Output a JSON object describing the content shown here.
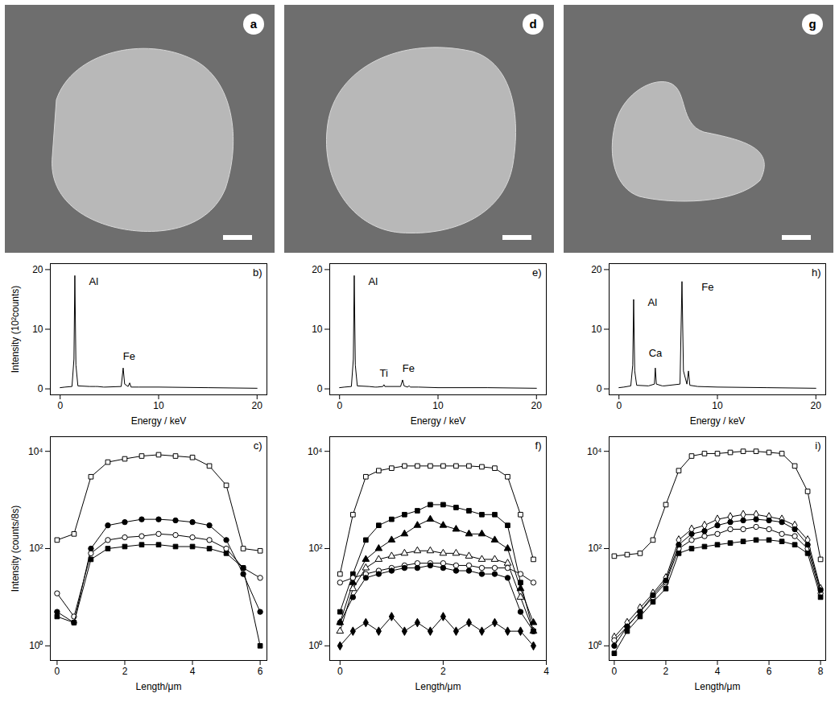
{
  "images": [
    {
      "label": "a"
    },
    {
      "label": "d"
    },
    {
      "label": "g"
    }
  ],
  "chart_data": [
    {
      "type": "line",
      "title": "b)",
      "ylabel": "Intensity (10²counts)",
      "xlabel": "Energy / keV",
      "xlim": [
        -1,
        21
      ],
      "xticks": [
        0,
        10,
        20
      ],
      "ylim": [
        -1,
        21
      ],
      "yticks": [
        0,
        10,
        20
      ],
      "x": [
        0,
        0.5,
        1.2,
        1.4,
        1.49,
        1.6,
        1.8,
        3,
        3.6,
        3.69,
        3.8,
        4.4,
        4.51,
        4.6,
        6.2,
        6.4,
        6.55,
        6.9,
        7.06,
        7.2,
        8,
        10,
        15,
        20
      ],
      "series": [
        {
          "color": "#000000",
          "marker": "none",
          "line_style": "solid",
          "values": [
            0.2,
            0.3,
            0.4,
            5,
            19,
            4,
            0.5,
            0.4,
            0.4,
            0.4,
            0.4,
            0.3,
            0.3,
            0.3,
            0.4,
            3.5,
            0.8,
            0.4,
            1,
            0.3,
            0.3,
            0.3,
            0.2,
            0.1
          ]
        }
      ],
      "annotations": [
        {
          "text": "Al",
          "x": 3.4,
          "y": 18
        },
        {
          "text": "Fe",
          "x": 7,
          "y": 5.5
        }
      ]
    },
    {
      "type": "line",
      "title": "e)",
      "xlabel": "Energy / keV",
      "xlim": [
        -1,
        21
      ],
      "xticks": [
        0,
        10,
        20
      ],
      "ylim": [
        -1,
        21
      ],
      "yticks": [
        0,
        10,
        20
      ],
      "x": [
        0,
        0.5,
        1.2,
        1.4,
        1.49,
        1.6,
        1.8,
        3,
        3.6,
        3.69,
        3.8,
        4.4,
        4.51,
        4.6,
        6.2,
        6.4,
        6.55,
        6.9,
        7.06,
        7.2,
        8,
        10,
        15,
        20
      ],
      "series": [
        {
          "color": "#000000",
          "marker": "none",
          "line_style": "solid",
          "values": [
            0.2,
            0.3,
            0.4,
            5,
            19,
            4,
            0.5,
            0.4,
            0.3,
            0.3,
            0.3,
            0.4,
            0.7,
            0.4,
            0.4,
            1.5,
            0.5,
            0.3,
            0.5,
            0.3,
            0.3,
            0.2,
            0.2,
            0.1
          ]
        }
      ],
      "annotations": [
        {
          "text": "Al",
          "x": 3.4,
          "y": 18
        },
        {
          "text": "Ti",
          "x": 4.5,
          "y": 2.6
        },
        {
          "text": "Fe",
          "x": 7,
          "y": 3.4
        }
      ]
    },
    {
      "type": "line",
      "title": "h)",
      "xlabel": "Energy / keV",
      "xlim": [
        -1,
        21
      ],
      "xticks": [
        0,
        10,
        20
      ],
      "ylim": [
        -1,
        21
      ],
      "yticks": [
        0,
        10,
        20
      ],
      "x": [
        0,
        0.5,
        1.2,
        1.4,
        1.49,
        1.6,
        1.8,
        3,
        3.6,
        3.69,
        3.8,
        4.4,
        4.51,
        4.6,
        6.2,
        6.4,
        6.55,
        6.9,
        7.06,
        7.2,
        8,
        10,
        15,
        20
      ],
      "series": [
        {
          "color": "#000000",
          "marker": "none",
          "line_style": "solid",
          "values": [
            0.2,
            0.3,
            0.5,
            4,
            15,
            3,
            0.6,
            0.5,
            0.8,
            3.5,
            0.8,
            0.5,
            0.5,
            0.5,
            0.8,
            18,
            3,
            0.8,
            3,
            0.6,
            0.4,
            0.3,
            0.2,
            0.1
          ]
        }
      ],
      "annotations": [
        {
          "text": "Al",
          "x": 3.4,
          "y": 14.5
        },
        {
          "text": "Ca",
          "x": 3.7,
          "y": 6
        },
        {
          "text": "Fe",
          "x": 9,
          "y": 17
        }
      ]
    },
    {
      "type": "line",
      "log": "y",
      "title": "c)",
      "ylabel": "Intensity (counts/8s)",
      "xlabel": "Length/μm",
      "xlim": [
        -0.2,
        6.2
      ],
      "xticks": [
        0,
        2,
        4,
        6
      ],
      "ylim": [
        0.5,
        20000
      ],
      "yticks": [
        {
          "value": 1,
          "label": "10⁰"
        },
        {
          "value": 100,
          "label": "10²"
        },
        {
          "value": 10000,
          "label": "10⁴"
        }
      ],
      "x": [
        0,
        0.5,
        1,
        1.5,
        2,
        2.5,
        3,
        3.5,
        4,
        4.5,
        5,
        5.5,
        6
      ],
      "series": [
        {
          "color": "#000000",
          "marker": "open_square",
          "line_style": "solid",
          "values": [
            150,
            200,
            3000,
            6000,
            7000,
            8000,
            8500,
            8000,
            7500,
            5000,
            2000,
            100,
            90
          ]
        },
        {
          "color": "#000000",
          "marker": "filled_circle",
          "line_style": "solid",
          "values": [
            5,
            3,
            100,
            300,
            350,
            400,
            400,
            380,
            350,
            300,
            150,
            30,
            5
          ]
        },
        {
          "color": "#000000",
          "marker": "open_circle",
          "line_style": "solid",
          "values": [
            12,
            4,
            80,
            150,
            170,
            180,
            200,
            190,
            170,
            150,
            100,
            40,
            25
          ]
        },
        {
          "color": "#000000",
          "marker": "filled_square",
          "line_style": "solid",
          "values": [
            4,
            3,
            60,
            100,
            110,
            120,
            120,
            110,
            110,
            100,
            80,
            40,
            1
          ]
        }
      ]
    },
    {
      "type": "line",
      "log": "y",
      "title": "f)",
      "xlabel": "Length/μm",
      "xlim": [
        -0.2,
        4
      ],
      "xticks": [
        0,
        2,
        4
      ],
      "ylim": [
        0.5,
        20000
      ],
      "yticks": [
        {
          "value": 1,
          "label": "10⁰"
        },
        {
          "value": 100,
          "label": "10²"
        },
        {
          "value": 10000,
          "label": "10⁴"
        }
      ],
      "x": [
        0,
        0.25,
        0.5,
        0.75,
        1,
        1.25,
        1.5,
        1.75,
        2,
        2.25,
        2.5,
        2.75,
        3,
        3.25,
        3.5,
        3.75
      ],
      "series": [
        {
          "color": "#000000",
          "marker": "open_square",
          "line_style": "solid",
          "values": [
            30,
            500,
            3000,
            4000,
            4500,
            5000,
            5000,
            5000,
            5000,
            5000,
            5000,
            4800,
            4500,
            3000,
            500,
            60
          ]
        },
        {
          "color": "#000000",
          "marker": "filled_square",
          "line_style": "solid",
          "values": [
            5,
            30,
            150,
            300,
            400,
            500,
            600,
            800,
            800,
            700,
            600,
            500,
            500,
            300,
            20,
            2
          ]
        },
        {
          "color": "#000000",
          "marker": "filled_triangle",
          "line_style": "solid",
          "values": [
            3,
            20,
            60,
            100,
            150,
            200,
            300,
            400,
            300,
            250,
            200,
            200,
            150,
            100,
            15,
            3
          ]
        },
        {
          "color": "#000000",
          "marker": "open_triangle",
          "line_style": "solid",
          "values": [
            2,
            15,
            40,
            60,
            70,
            80,
            90,
            90,
            80,
            80,
            70,
            60,
            60,
            50,
            10,
            2
          ]
        },
        {
          "color": "#000000",
          "marker": "open_circle",
          "line_style": "solid",
          "values": [
            20,
            25,
            30,
            35,
            40,
            45,
            50,
            50,
            50,
            45,
            45,
            40,
            40,
            40,
            30,
            20
          ]
        },
        {
          "color": "#000000",
          "marker": "filled_circle",
          "line_style": "solid",
          "values": [
            3,
            10,
            25,
            30,
            35,
            40,
            40,
            45,
            40,
            35,
            35,
            30,
            30,
            25,
            5,
            2
          ]
        },
        {
          "color": "#000000",
          "marker": "filled_diamond",
          "line_style": "solid",
          "values": [
            1,
            2,
            3,
            2,
            4,
            2,
            3,
            2,
            4,
            2,
            3,
            2,
            3,
            2,
            2,
            1
          ]
        }
      ]
    },
    {
      "type": "line",
      "log": "y",
      "title": "i)",
      "xlabel": "Length/μm",
      "xlim": [
        -0.2,
        8.2
      ],
      "xticks": [
        0,
        2,
        4,
        6,
        8
      ],
      "ylim": [
        0.5,
        20000
      ],
      "yticks": [
        {
          "value": 1,
          "label": "10⁰"
        },
        {
          "value": 100,
          "label": "10²"
        },
        {
          "value": 10000,
          "label": "10⁴"
        }
      ],
      "x": [
        0,
        0.5,
        1,
        1.5,
        2,
        2.5,
        3,
        3.5,
        4,
        4.5,
        5,
        5.5,
        6,
        6.5,
        7,
        7.5,
        8
      ],
      "series": [
        {
          "color": "#000000",
          "marker": "open_square",
          "line_style": "solid",
          "values": [
            70,
            75,
            80,
            150,
            800,
            4000,
            8000,
            9000,
            9000,
            9500,
            10000,
            10000,
            9500,
            9000,
            5000,
            1500,
            60
          ]
        },
        {
          "color": "#000000",
          "marker": "open_diamond",
          "line_style": "solid",
          "values": [
            1.5,
            3,
            6,
            12,
            25,
            150,
            250,
            300,
            400,
            450,
            500,
            500,
            450,
            400,
            300,
            150,
            15
          ]
        },
        {
          "color": "#000000",
          "marker": "open_circle",
          "line_style": "solid",
          "values": [
            1.3,
            2.5,
            5,
            10,
            20,
            100,
            150,
            180,
            200,
            250,
            250,
            280,
            250,
            200,
            180,
            100,
            12
          ]
        },
        {
          "color": "#000000",
          "marker": "filled_square",
          "line_style": "solid",
          "values": [
            0.7,
            2,
            4,
            8,
            15,
            80,
            100,
            110,
            120,
            130,
            140,
            150,
            150,
            140,
            120,
            80,
            10
          ]
        },
        {
          "color": "#000000",
          "marker": "filled_circle",
          "line_style": "solid",
          "values": [
            1,
            2.5,
            5,
            11,
            22,
            120,
            200,
            230,
            300,
            350,
            380,
            400,
            380,
            350,
            250,
            120,
            14
          ]
        }
      ]
    }
  ]
}
